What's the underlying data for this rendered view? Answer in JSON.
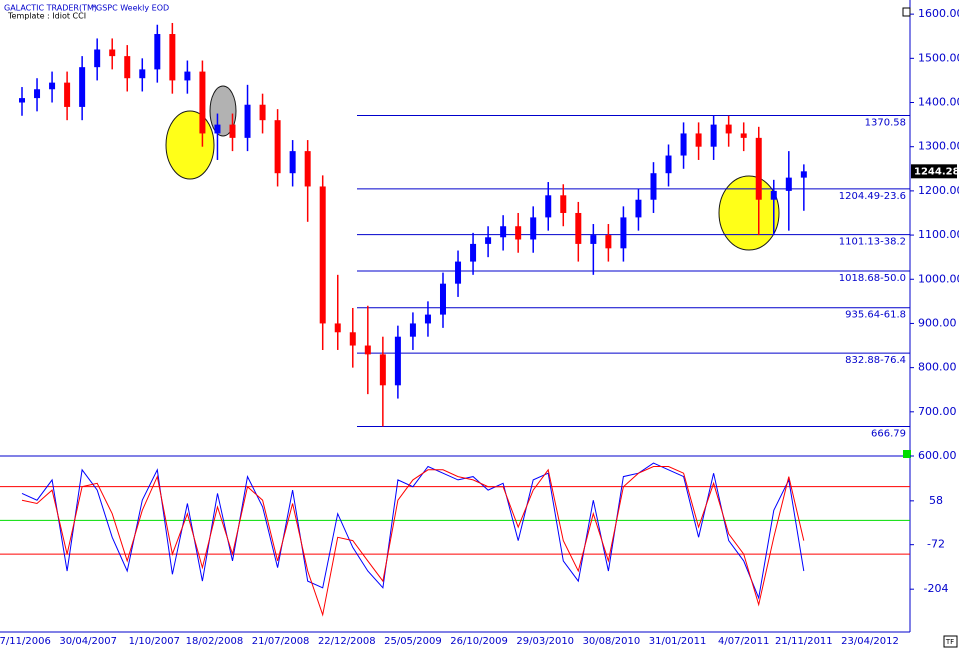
{
  "header": {
    "app": "GALACTIC TRADER(TM)",
    "symbol": "*GSPC Weekly EOD",
    "template": "Template : Idiot CCI"
  },
  "chart_data": [
    {
      "type": "candlestick",
      "x": [
        "27/11/2006",
        "1/01/2007",
        "5/02/2007",
        "12/03/2007",
        "16/04/2007",
        "21/05/2007",
        "25/06/2007",
        "30/07/2007",
        "3/09/2007",
        "8/10/2007",
        "12/11/2007",
        "17/12/2007",
        "21/01/2008",
        "25/02/2008",
        "31/03/2008",
        "5/05/2008",
        "9/06/2008",
        "14/07/2008",
        "18/08/2008",
        "22/09/2008",
        "27/10/2008",
        "1/12/2008",
        "5/01/2009",
        "9/02/2009",
        "16/03/2009",
        "20/04/2009",
        "25/05/2009",
        "29/06/2009",
        "3/08/2009",
        "7/09/2009",
        "12/10/2009",
        "16/11/2009",
        "21/12/2009",
        "25/01/2010",
        "1/03/2010",
        "5/04/2010",
        "10/05/2010",
        "14/06/2010",
        "19/07/2010",
        "23/08/2010",
        "27/09/2010",
        "1/11/2010",
        "6/12/2010",
        "10/01/2011",
        "14/02/2011",
        "21/03/2011",
        "25/04/2011",
        "30/05/2011",
        "4/07/2011",
        "8/08/2011",
        "12/09/2011",
        "17/10/2011",
        "21/11/2011"
      ],
      "open": [
        1400,
        1410,
        1430,
        1445,
        1390,
        1480,
        1520,
        1505,
        1455,
        1475,
        1555,
        1450,
        1470,
        1330,
        1350,
        1320,
        1395,
        1360,
        1240,
        1290,
        1210,
        900,
        880,
        850,
        830,
        760,
        870,
        900,
        920,
        990,
        1040,
        1080,
        1095,
        1120,
        1090,
        1140,
        1190,
        1150,
        1080,
        1100,
        1070,
        1140,
        1180,
        1240,
        1280,
        1330,
        1300,
        1350,
        1330,
        1320,
        1180,
        1200,
        1230
      ],
      "high": [
        1435,
        1455,
        1470,
        1470,
        1505,
        1545,
        1545,
        1530,
        1500,
        1576,
        1580,
        1495,
        1495,
        1375,
        1375,
        1440,
        1420,
        1385,
        1315,
        1315,
        1235,
        1010,
        935,
        940,
        870,
        895,
        925,
        950,
        1015,
        1065,
        1105,
        1120,
        1145,
        1150,
        1165,
        1220,
        1215,
        1175,
        1125,
        1125,
        1165,
        1205,
        1265,
        1305,
        1355,
        1355,
        1371,
        1370,
        1355,
        1345,
        1225,
        1290,
        1260
      ],
      "low": [
        1370,
        1380,
        1400,
        1360,
        1360,
        1450,
        1475,
        1425,
        1425,
        1445,
        1420,
        1420,
        1300,
        1270,
        1290,
        1290,
        1330,
        1210,
        1210,
        1130,
        840,
        840,
        800,
        740,
        667,
        730,
        840,
        870,
        890,
        960,
        1010,
        1050,
        1065,
        1060,
        1060,
        1110,
        1120,
        1040,
        1010,
        1040,
        1040,
        1110,
        1150,
        1210,
        1250,
        1270,
        1270,
        1300,
        1290,
        1100,
        1100,
        1110,
        1155
      ],
      "close": [
        1410,
        1430,
        1445,
        1390,
        1480,
        1520,
        1505,
        1455,
        1475,
        1555,
        1450,
        1470,
        1330,
        1350,
        1320,
        1395,
        1360,
        1240,
        1290,
        1210,
        900,
        880,
        850,
        830,
        760,
        870,
        900,
        920,
        990,
        1040,
        1080,
        1095,
        1120,
        1090,
        1140,
        1190,
        1150,
        1080,
        1100,
        1070,
        1140,
        1180,
        1240,
        1280,
        1330,
        1300,
        1350,
        1330,
        1320,
        1180,
        1200,
        1230,
        1244.28
      ],
      "up_color": "#0000ff",
      "down_color": "#ff0000",
      "ylim": [
        600,
        1632
      ],
      "yticks": [
        {
          "value": 1600,
          "label": "1600.00"
        },
        {
          "value": 1500,
          "label": "1500.00"
        },
        {
          "value": 1400,
          "label": "1400.00"
        },
        {
          "value": 1300,
          "label": "1300.00"
        },
        {
          "value": 1200,
          "label": "1200.00"
        },
        {
          "value": 1100,
          "label": "1100.00"
        },
        {
          "value": 1000,
          "label": "1000.00"
        },
        {
          "value": 900,
          "label": "900.00"
        },
        {
          "value": 800,
          "label": "800.00"
        },
        {
          "value": 700,
          "label": "700.00"
        },
        {
          "value": 600,
          "label": "600.00"
        }
      ],
      "levels": [
        {
          "value": 1370.58,
          "label": "1370.58"
        },
        {
          "value": 1204.49,
          "label": "1204.49-23.6"
        },
        {
          "value": 1101.13,
          "label": "1101.13-38.2"
        },
        {
          "value": 1018.68,
          "label": "1018.68-50.0"
        },
        {
          "value": 935.64,
          "label": "935.64-61.8"
        },
        {
          "value": 832.88,
          "label": "832.88-76.4"
        },
        {
          "value": 666.79,
          "label": "666.79"
        }
      ],
      "level_color": "#0000cc",
      "xticks": [
        "27/11/2006",
        "30/04/2007",
        "1/10/2007",
        "18/02/2008",
        "21/07/2008",
        "22/12/2008",
        "25/05/2009",
        "26/10/2009",
        "29/03/2010",
        "30/08/2010",
        "31/01/2011",
        "4/07/2011",
        "21/11/2011",
        "23/04/2012"
      ]
    },
    {
      "type": "line",
      "x": [
        "27/11/2006",
        "1/01/2007",
        "5/02/2007",
        "12/03/2007",
        "16/04/2007",
        "21/05/2007",
        "25/06/2007",
        "30/07/2007",
        "3/09/2007",
        "8/10/2007",
        "12/11/2007",
        "17/12/2007",
        "21/01/2008",
        "25/02/2008",
        "31/03/2008",
        "5/05/2008",
        "9/06/2008",
        "14/07/2008",
        "18/08/2008",
        "22/09/2008",
        "27/10/2008",
        "1/12/2008",
        "5/01/2009",
        "9/02/2009",
        "16/03/2009",
        "20/04/2009",
        "25/05/2009",
        "29/06/2009",
        "3/08/2009",
        "7/09/2009",
        "12/10/2009",
        "16/11/2009",
        "21/12/2009",
        "25/01/2010",
        "1/03/2010",
        "5/04/2010",
        "10/05/2010",
        "14/06/2010",
        "19/07/2010",
        "23/08/2010",
        "27/09/2010",
        "1/11/2010",
        "6/12/2010",
        "10/01/2011",
        "14/02/2011",
        "21/03/2011",
        "25/04/2011",
        "30/05/2011",
        "4/07/2011",
        "8/08/2011",
        "12/09/2011",
        "17/10/2011",
        "21/11/2011"
      ],
      "series": [
        {
          "color": "#0000ff",
          "values": [
            80,
            60,
            120,
            -150,
            150,
            90,
            -50,
            -150,
            60,
            150,
            -160,
            50,
            -180,
            80,
            -120,
            130,
            40,
            -140,
            90,
            -180,
            -200,
            20,
            -80,
            -150,
            -200,
            120,
            100,
            160,
            140,
            120,
            130,
            90,
            110,
            -60,
            120,
            140,
            -120,
            -180,
            60,
            -150,
            130,
            140,
            170,
            150,
            130,
            -50,
            140,
            -60,
            -120,
            -230,
            30,
            120,
            -150
          ]
        },
        {
          "color": "#ff0000",
          "values": [
            60,
            50,
            90,
            -100,
            100,
            110,
            20,
            -120,
            30,
            130,
            -100,
            20,
            -140,
            40,
            -100,
            100,
            60,
            -120,
            50,
            -150,
            -280,
            -50,
            -60,
            -120,
            -180,
            60,
            120,
            150,
            150,
            130,
            120,
            100,
            100,
            -20,
            90,
            150,
            -60,
            -150,
            20,
            -120,
            100,
            140,
            160,
            160,
            140,
            -20,
            110,
            -40,
            -100,
            -250,
            -50,
            130,
            -60
          ]
        }
      ],
      "levels": [
        {
          "value": 100,
          "color": "#ff0000"
        },
        {
          "value": 0,
          "color": "#00dd00"
        },
        {
          "value": -100,
          "color": "#ff0000"
        }
      ],
      "ylim": [
        -331,
        191
      ],
      "yticks": [
        58,
        -72,
        -204
      ]
    }
  ]
}
